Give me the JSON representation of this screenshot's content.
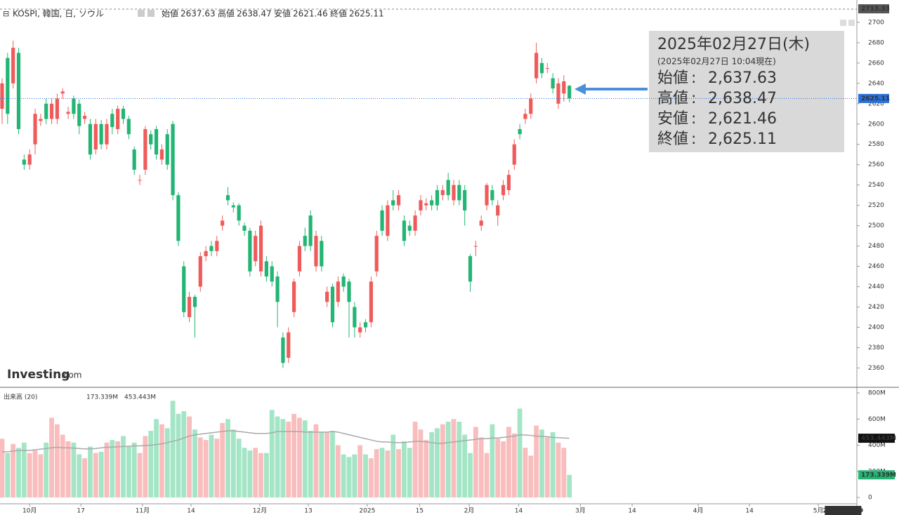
{
  "chart_data": {
    "type": "candlestick",
    "title": "KOSPI, 韓国, 日, ソウル",
    "header_fields": [
      {
        "label": "始値",
        "value": 2637.63
      },
      {
        "label": "高値",
        "value": 2638.47
      },
      {
        "label": "安値",
        "value": 2621.46
      },
      {
        "label": "終値",
        "value": 2625.11
      }
    ],
    "up_color": "#ef5b5b",
    "down_color": "#22b573",
    "open": [
      2615,
      2665,
      2640,
      2670,
      2565,
      2560,
      2580,
      2603,
      2620,
      2605,
      2605,
      2630,
      2610,
      2625,
      2620,
      2605,
      2600,
      2575,
      2600,
      2580,
      2610,
      2595,
      2615,
      2605,
      2575,
      2545,
      2555,
      2590,
      2595,
      2565,
      2590,
      2600,
      2530,
      2460,
      2410,
      2430,
      2440,
      2470,
      2480,
      2475,
      2500,
      2530,
      2520,
      2520,
      2500,
      2495,
      2465,
      2455,
      2465,
      2460,
      2450,
      2390,
      2370,
      2415,
      2455,
      2490,
      2510,
      2460,
      2485,
      2425,
      2440,
      2425,
      2450,
      2445,
      2420,
      2395,
      2405,
      2405,
      2455,
      2515,
      2490,
      2525,
      2520,
      2505,
      2500,
      2495,
      2515,
      2520,
      2525,
      2535,
      2530,
      2545,
      2525,
      2540,
      2535,
      2470,
      2480,
      2500,
      2520,
      2535,
      2510,
      2530,
      2535,
      2560,
      2595,
      2605,
      2610,
      2645,
      2660,
      2655,
      2645,
      2620,
      2630,
      2637.63
    ],
    "high": [
      2645,
      2670,
      2682,
      2675,
      2570,
      2575,
      2615,
      2610,
      2625,
      2625,
      2630,
      2635,
      2617,
      2628,
      2624,
      2612,
      2605,
      2605,
      2604,
      2605,
      2615,
      2618,
      2618,
      2608,
      2578,
      2550,
      2598,
      2594,
      2598,
      2580,
      2595,
      2603,
      2533,
      2465,
      2435,
      2432,
      2474,
      2480,
      2485,
      2490,
      2510,
      2538,
      2523,
      2522,
      2503,
      2498,
      2495,
      2505,
      2470,
      2465,
      2455,
      2395,
      2400,
      2448,
      2485,
      2498,
      2515,
      2495,
      2490,
      2440,
      2443,
      2450,
      2453,
      2448,
      2425,
      2405,
      2408,
      2450,
      2495,
      2520,
      2525,
      2535,
      2535,
      2510,
      2505,
      2515,
      2530,
      2527,
      2530,
      2540,
      2540,
      2552,
      2545,
      2545,
      2540,
      2472,
      2485,
      2510,
      2542,
      2540,
      2525,
      2545,
      2555,
      2585,
      2600,
      2615,
      2630,
      2680,
      2665,
      2660,
      2650,
      2645,
      2648,
      2638.47
    ],
    "low": [
      2600,
      2600,
      2635,
      2590,
      2555,
      2555,
      2570,
      2598,
      2600,
      2600,
      2600,
      2625,
      2605,
      2605,
      2590,
      2600,
      2565,
      2570,
      2575,
      2575,
      2590,
      2590,
      2600,
      2585,
      2550,
      2540,
      2550,
      2575,
      2565,
      2560,
      2555,
      2525,
      2480,
      2410,
      2405,
      2390,
      2435,
      2465,
      2470,
      2470,
      2495,
      2520,
      2513,
      2500,
      2490,
      2450,
      2460,
      2450,
      2445,
      2440,
      2400,
      2360,
      2365,
      2410,
      2450,
      2475,
      2475,
      2455,
      2455,
      2420,
      2400,
      2420,
      2435,
      2390,
      2390,
      2390,
      2395,
      2400,
      2450,
      2490,
      2485,
      2515,
      2515,
      2480,
      2490,
      2490,
      2510,
      2515,
      2515,
      2515,
      2525,
      2525,
      2520,
      2520,
      2500,
      2435,
      2470,
      2495,
      2515,
      2520,
      2500,
      2525,
      2530,
      2555,
      2585,
      2600,
      2605,
      2640,
      2645,
      2650,
      2630,
      2615,
      2622,
      2621.46
    ],
    "close": [
      2640,
      2610,
      2675,
      2595,
      2560,
      2570,
      2610,
      2605,
      2605,
      2620,
      2625,
      2632,
      2612,
      2610,
      2598,
      2608,
      2570,
      2600,
      2580,
      2600,
      2597,
      2615,
      2605,
      2590,
      2555,
      2545,
      2595,
      2580,
      2570,
      2575,
      2560,
      2530,
      2485,
      2415,
      2430,
      2420,
      2470,
      2475,
      2475,
      2485,
      2505,
      2525,
      2518,
      2505,
      2495,
      2455,
      2490,
      2500,
      2450,
      2445,
      2425,
      2365,
      2395,
      2445,
      2480,
      2480,
      2480,
      2490,
      2460,
      2435,
      2405,
      2445,
      2440,
      2425,
      2400,
      2400,
      2400,
      2445,
      2490,
      2495,
      2520,
      2520,
      2530,
      2485,
      2495,
      2510,
      2525,
      2522,
      2520,
      2520,
      2535,
      2530,
      2540,
      2525,
      2515,
      2445,
      2480,
      2505,
      2540,
      2525,
      2520,
      2540,
      2550,
      2580,
      2590,
      2610,
      2625,
      2670,
      2650,
      2655,
      2635,
      2640,
      2642,
      2625.11
    ],
    "ylim": [
      2341,
      2722
    ],
    "yticks": [
      2360,
      2380,
      2400,
      2420,
      2440,
      2460,
      2480,
      2500,
      2520,
      2540,
      2560,
      2580,
      2600,
      2620,
      2640,
      2660,
      2680,
      2700
    ],
    "xlim": [
      -0.38,
      155.2
    ],
    "xticks": [
      {
        "value": 5,
        "label": "10月"
      },
      {
        "value": 14.3,
        "label": "17"
      },
      {
        "value": 25.5,
        "label": "11月"
      },
      {
        "value": 34.3,
        "label": "14"
      },
      {
        "value": 46.8,
        "label": "12月"
      },
      {
        "value": 55.6,
        "label": "13"
      },
      {
        "value": 66.3,
        "label": "2025"
      },
      {
        "value": 75.8,
        "label": "15"
      },
      {
        "value": 84.8,
        "label": "2月"
      },
      {
        "value": 93.8,
        "label": "14"
      },
      {
        "value": 105,
        "label": "3月"
      },
      {
        "value": 114.4,
        "label": "14"
      },
      {
        "value": 126.4,
        "label": "4月"
      },
      {
        "value": 135.7,
        "label": "14"
      },
      {
        "value": 148.2,
        "label": "5月"
      }
    ],
    "x_tag": {
      "value": 152.7,
      "label": "2025-05-09"
    },
    "last_price": 2625.11,
    "high_tag": 2713.33,
    "volume": {
      "name": "出来高 (20)",
      "up_color": "#f9bdbd",
      "down_color": "#a4e5c6",
      "ma_color": "#a9a9a9",
      "values": [
        450,
        340,
        410,
        380,
        420,
        340,
        360,
        330,
        420,
        610,
        560,
        480,
        430,
        420,
        330,
        300,
        390,
        340,
        350,
        420,
        440,
        430,
        470,
        390,
        420,
        340,
        470,
        510,
        600,
        560,
        530,
        740,
        640,
        660,
        620,
        520,
        460,
        440,
        480,
        450,
        570,
        600,
        520,
        450,
        380,
        360,
        380,
        340,
        340,
        670,
        620,
        600,
        580,
        640,
        610,
        590,
        510,
        560,
        500,
        500,
        510,
        400,
        330,
        310,
        330,
        400,
        330,
        300,
        370,
        380,
        360,
        480,
        370,
        430,
        380,
        580,
        520,
        440,
        500,
        530,
        560,
        580,
        600,
        580,
        480,
        340,
        540,
        460,
        340,
        560,
        450,
        430,
        540,
        490,
        680,
        380,
        320,
        550,
        520,
        460,
        500,
        420,
        380,
        173.339
      ],
      "ma": [
        350,
        350,
        355,
        360,
        360,
        360,
        365,
        370,
        375,
        380,
        385,
        380,
        380,
        378,
        375,
        372,
        372,
        375,
        380,
        385,
        385,
        388,
        390,
        392,
        395,
        395,
        398,
        400,
        405,
        410,
        420,
        430,
        440,
        455,
        470,
        480,
        485,
        490,
        495,
        500,
        505,
        510,
        510,
        505,
        500,
        495,
        490,
        490,
        490,
        495,
        505,
        505,
        505,
        505,
        505,
        500,
        500,
        500,
        500,
        500,
        505,
        500,
        490,
        480,
        470,
        460,
        450,
        440,
        430,
        425,
        425,
        420,
        420,
        420,
        425,
        430,
        430,
        425,
        420,
        415,
        415,
        420,
        425,
        430,
        435,
        440,
        445,
        450,
        450,
        455,
        455,
        460,
        465,
        470,
        480,
        478,
        475,
        470,
        468,
        465,
        460,
        458,
        455,
        453.443
      ],
      "last_tag": {
        "value": 173.339,
        "label": "173.339M"
      },
      "ma_tag": {
        "value": 453.443,
        "label": "453.443M"
      },
      "ylim": [
        -48,
        843
      ],
      "yticks": [
        0,
        {
          "value": 200,
          "label": "200M"
        },
        {
          "value": 400,
          "label": "400M"
        },
        {
          "value": 600,
          "label": "600M"
        },
        {
          "value": 800,
          "label": "800M"
        }
      ]
    }
  },
  "info_box": {
    "date": "2025年02月27日(木)",
    "as_of": "(2025年02月27日 10:04現在)",
    "separator": ":",
    "rows": [
      {
        "label": "始値",
        "value": "2,637.63",
        "color": "#111111"
      },
      {
        "label": "高値",
        "value": "2,638.47",
        "color": "#d0021b"
      },
      {
        "label": "安値",
        "value": "2,621.46",
        "color": "#111111"
      },
      {
        "label": "終値",
        "value": "2,625.11",
        "color": "#d0021b"
      }
    ]
  },
  "logo": {
    "name": "Investing",
    "suffix": ".com"
  }
}
